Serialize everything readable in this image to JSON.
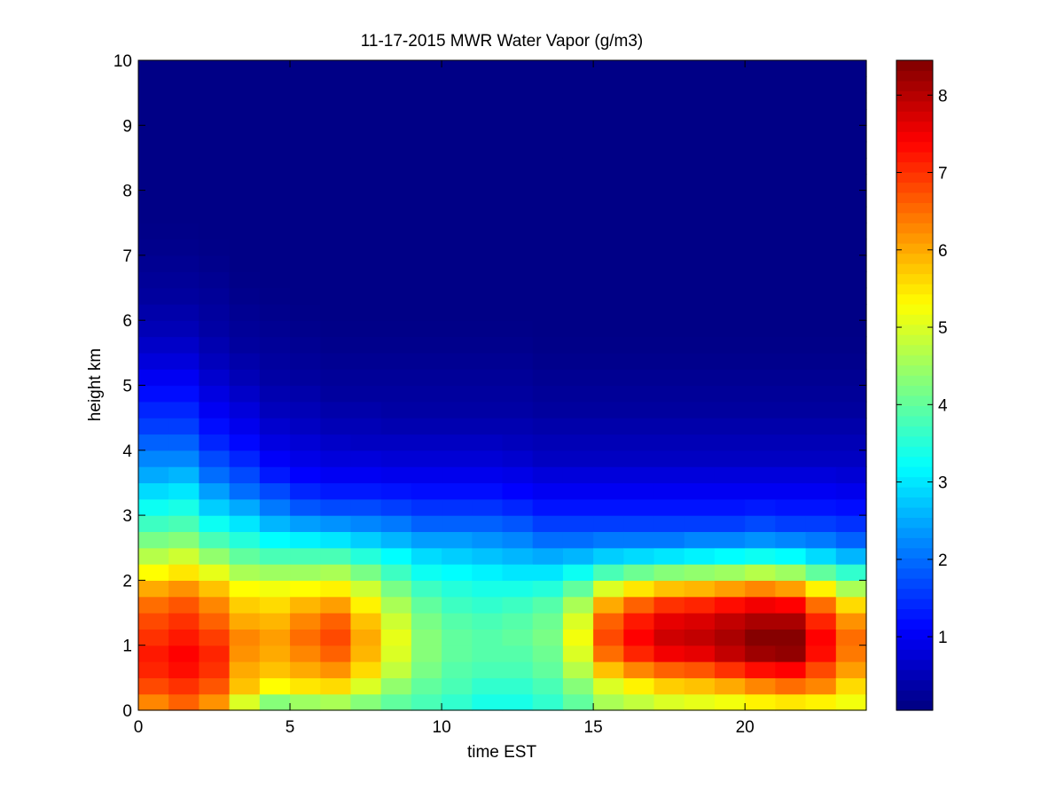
{
  "chart_data": {
    "type": "heatmap",
    "title": "11-17-2015 MWR Water Vapor (g/m3)",
    "xlabel": "time EST",
    "ylabel": "height km",
    "xlim": [
      0,
      24
    ],
    "ylim": [
      0,
      10
    ],
    "xticks": [
      0,
      5,
      10,
      15,
      20
    ],
    "yticks": [
      0,
      1,
      2,
      3,
      4,
      5,
      6,
      7,
      8,
      9,
      10
    ],
    "colormap": "jet",
    "colorbar": {
      "range": [
        0.05,
        8.45
      ],
      "ticks": [
        1,
        2,
        3,
        4,
        5,
        6,
        7,
        8
      ]
    },
    "time_hours": [
      0,
      1,
      2,
      3,
      4,
      5,
      6,
      7,
      8,
      9,
      10,
      11,
      12,
      13,
      14,
      15,
      16,
      17,
      18,
      19,
      20,
      21,
      22,
      23
    ],
    "height_km": [
      0.0,
      0.25,
      0.5,
      0.75,
      1.0,
      1.25,
      1.5,
      1.75,
      2.0,
      2.25,
      2.5,
      2.75,
      3.0,
      3.25,
      3.5,
      3.75,
      4.0,
      4.25,
      4.5,
      4.75,
      5.0,
      5.25,
      5.5,
      5.75,
      6.0,
      6.25,
      6.5,
      6.75,
      7.0,
      7.25,
      7.5,
      7.75,
      8.0,
      8.25,
      8.5,
      8.75,
      9.0,
      9.25,
      9.5,
      9.75
    ],
    "profiles": [
      [
        6.3,
        6.8,
        7.1,
        7.2,
        7.0,
        6.8,
        6.5,
        6.0,
        5.3,
        4.7,
        4.2,
        3.7,
        3.3,
        2.9,
        2.5,
        2.2,
        1.9,
        1.6,
        1.4,
        1.2,
        1.0,
        0.8,
        0.65,
        0.5,
        0.4,
        0.3,
        0.25,
        0.2,
        0.15,
        0.12,
        0.1,
        0.1,
        0.1,
        0.1,
        0.1,
        0.1,
        0.1,
        0.1,
        0.1,
        0.1
      ],
      [
        6.6,
        7.0,
        7.3,
        7.4,
        7.2,
        7.0,
        6.7,
        6.2,
        5.5,
        4.9,
        4.3,
        3.8,
        3.4,
        3.0,
        2.6,
        2.2,
        1.9,
        1.6,
        1.4,
        1.2,
        1.0,
        0.8,
        0.65,
        0.5,
        0.4,
        0.3,
        0.25,
        0.2,
        0.15,
        0.12,
        0.1,
        0.1,
        0.1,
        0.1,
        0.1,
        0.1,
        0.1,
        0.1,
        0.1,
        0.1
      ],
      [
        6.2,
        6.7,
        7.0,
        7.1,
        6.9,
        6.6,
        6.3,
        5.8,
        5.1,
        4.4,
        3.8,
        3.3,
        2.8,
        2.4,
        2.0,
        1.7,
        1.4,
        1.2,
        1.0,
        0.85,
        0.7,
        0.55,
        0.45,
        0.35,
        0.3,
        0.25,
        0.2,
        0.15,
        0.12,
        0.1,
        0.1,
        0.1,
        0.1,
        0.1,
        0.1,
        0.1,
        0.1,
        0.1,
        0.1,
        0.1
      ],
      [
        5.0,
        5.8,
        6.0,
        6.2,
        6.3,
        6.0,
        5.7,
        5.3,
        4.6,
        4.0,
        3.5,
        3.0,
        2.5,
        2.0,
        1.7,
        1.4,
        1.15,
        0.95,
        0.8,
        0.65,
        0.5,
        0.4,
        0.3,
        0.25,
        0.2,
        0.15,
        0.12,
        0.1,
        0.1,
        0.1,
        0.1,
        0.1,
        0.1,
        0.1,
        0.1,
        0.1,
        0.1,
        0.1,
        0.1,
        0.1
      ],
      [
        4.3,
        5.3,
        5.8,
        6.0,
        6.1,
        5.9,
        5.6,
        5.2,
        4.5,
        3.8,
        3.2,
        2.6,
        2.1,
        1.7,
        1.3,
        1.05,
        0.85,
        0.7,
        0.55,
        0.45,
        0.35,
        0.3,
        0.25,
        0.2,
        0.15,
        0.12,
        0.1,
        0.1,
        0.1,
        0.1,
        0.1,
        0.1,
        0.1,
        0.1,
        0.1,
        0.1,
        0.1,
        0.1,
        0.1,
        0.1
      ],
      [
        4.5,
        5.5,
        6.0,
        6.3,
        6.5,
        6.3,
        5.9,
        5.3,
        4.5,
        3.8,
        3.1,
        2.4,
        1.8,
        1.4,
        1.1,
        0.9,
        0.75,
        0.6,
        0.5,
        0.4,
        0.3,
        0.25,
        0.2,
        0.15,
        0.12,
        0.1,
        0.1,
        0.1,
        0.1,
        0.1,
        0.1,
        0.1,
        0.1,
        0.1,
        0.1,
        0.1,
        0.1,
        0.1,
        0.1,
        0.1
      ],
      [
        4.6,
        5.6,
        6.2,
        6.6,
        6.8,
        6.6,
        6.1,
        5.4,
        4.6,
        3.8,
        3.0,
        2.3,
        1.7,
        1.3,
        1.0,
        0.8,
        0.65,
        0.5,
        0.4,
        0.3,
        0.25,
        0.2,
        0.15,
        0.12,
        0.1,
        0.1,
        0.1,
        0.1,
        0.1,
        0.1,
        0.1,
        0.1,
        0.1,
        0.1,
        0.1,
        0.1,
        0.1,
        0.1,
        0.1,
        0.1
      ],
      [
        4.3,
        5.0,
        5.6,
        5.9,
        6.0,
        5.8,
        5.4,
        4.9,
        4.2,
        3.5,
        2.8,
        2.2,
        1.7,
        1.3,
        1.0,
        0.8,
        0.6,
        0.5,
        0.4,
        0.3,
        0.25,
        0.2,
        0.15,
        0.12,
        0.1,
        0.1,
        0.1,
        0.1,
        0.1,
        0.1,
        0.1,
        0.1,
        0.1,
        0.1,
        0.1,
        0.1,
        0.1,
        0.1,
        0.1,
        0.1
      ],
      [
        4.0,
        4.4,
        4.8,
        5.0,
        5.1,
        4.9,
        4.6,
        4.2,
        3.7,
        3.2,
        2.6,
        2.1,
        1.6,
        1.25,
        0.95,
        0.75,
        0.6,
        0.45,
        0.35,
        0.3,
        0.25,
        0.2,
        0.15,
        0.12,
        0.1,
        0.1,
        0.1,
        0.1,
        0.1,
        0.1,
        0.1,
        0.1,
        0.1,
        0.1,
        0.1,
        0.1,
        0.1,
        0.1,
        0.1,
        0.1
      ],
      [
        3.8,
        4.0,
        4.2,
        4.3,
        4.3,
        4.2,
        4.0,
        3.7,
        3.3,
        2.9,
        2.4,
        1.9,
        1.5,
        1.2,
        0.95,
        0.75,
        0.6,
        0.45,
        0.35,
        0.3,
        0.25,
        0.2,
        0.15,
        0.12,
        0.1,
        0.1,
        0.1,
        0.1,
        0.1,
        0.1,
        0.1,
        0.1,
        0.1,
        0.1,
        0.1,
        0.1,
        0.1,
        0.1,
        0.1,
        0.1
      ],
      [
        3.6,
        3.8,
        3.9,
        4.0,
        4.0,
        3.9,
        3.7,
        3.5,
        3.2,
        2.8,
        2.4,
        1.9,
        1.5,
        1.2,
        0.95,
        0.75,
        0.6,
        0.45,
        0.35,
        0.3,
        0.25,
        0.2,
        0.15,
        0.12,
        0.1,
        0.1,
        0.1,
        0.1,
        0.1,
        0.1,
        0.1,
        0.1,
        0.1,
        0.1,
        0.1,
        0.1,
        0.1,
        0.1,
        0.1,
        0.1
      ],
      [
        3.4,
        3.6,
        3.8,
        3.9,
        3.9,
        3.8,
        3.6,
        3.4,
        3.1,
        2.7,
        2.3,
        1.9,
        1.5,
        1.2,
        0.95,
        0.75,
        0.6,
        0.45,
        0.35,
        0.3,
        0.25,
        0.2,
        0.15,
        0.12,
        0.1,
        0.1,
        0.1,
        0.1,
        0.1,
        0.1,
        0.1,
        0.1,
        0.1,
        0.1,
        0.1,
        0.1,
        0.1,
        0.1,
        0.1,
        0.1
      ],
      [
        3.4,
        3.6,
        3.8,
        3.9,
        4.0,
        3.9,
        3.7,
        3.4,
        3.0,
        2.6,
        2.2,
        1.8,
        1.4,
        1.1,
        0.9,
        0.7,
        0.55,
        0.45,
        0.35,
        0.3,
        0.25,
        0.2,
        0.15,
        0.12,
        0.1,
        0.1,
        0.1,
        0.1,
        0.1,
        0.1,
        0.1,
        0.1,
        0.1,
        0.1,
        0.1,
        0.1,
        0.1,
        0.1,
        0.1,
        0.1
      ],
      [
        3.6,
        3.8,
        4.0,
        4.1,
        4.2,
        4.1,
        3.9,
        3.5,
        3.0,
        2.5,
        2.0,
        1.6,
        1.25,
        1.0,
        0.8,
        0.6,
        0.5,
        0.4,
        0.3,
        0.25,
        0.2,
        0.15,
        0.12,
        0.1,
        0.1,
        0.1,
        0.1,
        0.1,
        0.1,
        0.1,
        0.1,
        0.1,
        0.1,
        0.1,
        0.1,
        0.1,
        0.1,
        0.1,
        0.1,
        0.1
      ],
      [
        4.0,
        4.3,
        4.7,
        5.0,
        5.2,
        5.0,
        4.6,
        4.0,
        3.3,
        2.6,
        2.0,
        1.6,
        1.25,
        1.0,
        0.8,
        0.6,
        0.5,
        0.4,
        0.3,
        0.25,
        0.2,
        0.15,
        0.12,
        0.1,
        0.1,
        0.1,
        0.1,
        0.1,
        0.1,
        0.1,
        0.1,
        0.1,
        0.1,
        0.1,
        0.1,
        0.1,
        0.1,
        0.1,
        0.1,
        0.1
      ],
      [
        4.6,
        5.0,
        5.8,
        6.5,
        6.8,
        6.6,
        6.0,
        5.0,
        3.8,
        2.8,
        2.1,
        1.6,
        1.25,
        1.0,
        0.8,
        0.6,
        0.5,
        0.4,
        0.3,
        0.25,
        0.2,
        0.15,
        0.12,
        0.1,
        0.1,
        0.1,
        0.1,
        0.1,
        0.1,
        0.1,
        0.1,
        0.1,
        0.1,
        0.1,
        0.1,
        0.1,
        0.1,
        0.1,
        0.1,
        0.1
      ],
      [
        4.8,
        5.4,
        6.3,
        7.1,
        7.4,
        7.2,
        6.6,
        5.5,
        4.1,
        2.9,
        2.1,
        1.6,
        1.25,
        1.0,
        0.8,
        0.6,
        0.5,
        0.4,
        0.3,
        0.25,
        0.2,
        0.15,
        0.12,
        0.1,
        0.1,
        0.1,
        0.1,
        0.1,
        0.1,
        0.1,
        0.1,
        0.1,
        0.1,
        0.1,
        0.1,
        0.1,
        0.1,
        0.1,
        0.1,
        0.1
      ],
      [
        5.0,
        5.7,
        6.6,
        7.5,
        7.8,
        7.6,
        7.0,
        5.8,
        4.3,
        3.0,
        2.1,
        1.6,
        1.25,
        1.0,
        0.8,
        0.6,
        0.5,
        0.4,
        0.3,
        0.25,
        0.2,
        0.15,
        0.12,
        0.1,
        0.1,
        0.1,
        0.1,
        0.1,
        0.1,
        0.1,
        0.1,
        0.1,
        0.1,
        0.1,
        0.1,
        0.1,
        0.1,
        0.1,
        0.1,
        0.1
      ],
      [
        5.1,
        5.8,
        6.7,
        7.6,
        7.9,
        7.7,
        7.1,
        5.9,
        4.4,
        3.1,
        2.2,
        1.6,
        1.25,
        1.0,
        0.8,
        0.6,
        0.5,
        0.4,
        0.3,
        0.25,
        0.2,
        0.15,
        0.12,
        0.1,
        0.1,
        0.1,
        0.1,
        0.1,
        0.1,
        0.1,
        0.1,
        0.1,
        0.1,
        0.1,
        0.1,
        0.1,
        0.1,
        0.1,
        0.1,
        0.1
      ],
      [
        5.2,
        6.0,
        7.0,
        7.9,
        8.1,
        7.9,
        7.3,
        6.1,
        4.5,
        3.2,
        2.2,
        1.6,
        1.25,
        1.0,
        0.8,
        0.6,
        0.5,
        0.4,
        0.3,
        0.25,
        0.2,
        0.15,
        0.12,
        0.1,
        0.1,
        0.1,
        0.1,
        0.1,
        0.1,
        0.1,
        0.1,
        0.1,
        0.1,
        0.1,
        0.1,
        0.1,
        0.1,
        0.1,
        0.1,
        0.1
      ],
      [
        5.4,
        6.3,
        7.3,
        8.2,
        8.4,
        8.1,
        7.5,
        6.3,
        4.7,
        3.3,
        2.3,
        1.7,
        1.3,
        1.0,
        0.8,
        0.6,
        0.5,
        0.4,
        0.3,
        0.25,
        0.2,
        0.15,
        0.12,
        0.1,
        0.1,
        0.1,
        0.1,
        0.1,
        0.1,
        0.1,
        0.1,
        0.1,
        0.1,
        0.1,
        0.1,
        0.1,
        0.1,
        0.1,
        0.1,
        0.1
      ],
      [
        5.5,
        6.5,
        7.4,
        8.3,
        8.4,
        8.1,
        7.4,
        6.1,
        4.5,
        3.2,
        2.2,
        1.6,
        1.25,
        1.0,
        0.8,
        0.6,
        0.5,
        0.4,
        0.3,
        0.25,
        0.2,
        0.15,
        0.12,
        0.1,
        0.1,
        0.1,
        0.1,
        0.1,
        0.1,
        0.1,
        0.1,
        0.1,
        0.1,
        0.1,
        0.1,
        0.1,
        0.1,
        0.1,
        0.1,
        0.1
      ],
      [
        5.4,
        6.3,
        6.8,
        7.3,
        7.4,
        7.1,
        6.5,
        5.4,
        4.0,
        2.9,
        2.1,
        1.6,
        1.25,
        1.0,
        0.8,
        0.6,
        0.5,
        0.4,
        0.3,
        0.25,
        0.2,
        0.15,
        0.12,
        0.1,
        0.1,
        0.1,
        0.1,
        0.1,
        0.1,
        0.1,
        0.1,
        0.1,
        0.1,
        0.1,
        0.1,
        0.1,
        0.1,
        0.1,
        0.1,
        0.1
      ],
      [
        5.2,
        5.6,
        6.1,
        6.4,
        6.5,
        6.2,
        5.6,
        4.6,
        3.6,
        2.6,
        1.9,
        1.5,
        1.2,
        0.95,
        0.75,
        0.6,
        0.5,
        0.4,
        0.3,
        0.25,
        0.2,
        0.15,
        0.12,
        0.1,
        0.1,
        0.1,
        0.1,
        0.1,
        0.1,
        0.1,
        0.1,
        0.1,
        0.1,
        0.1,
        0.1,
        0.1,
        0.1,
        0.1,
        0.1,
        0.1
      ]
    ]
  }
}
